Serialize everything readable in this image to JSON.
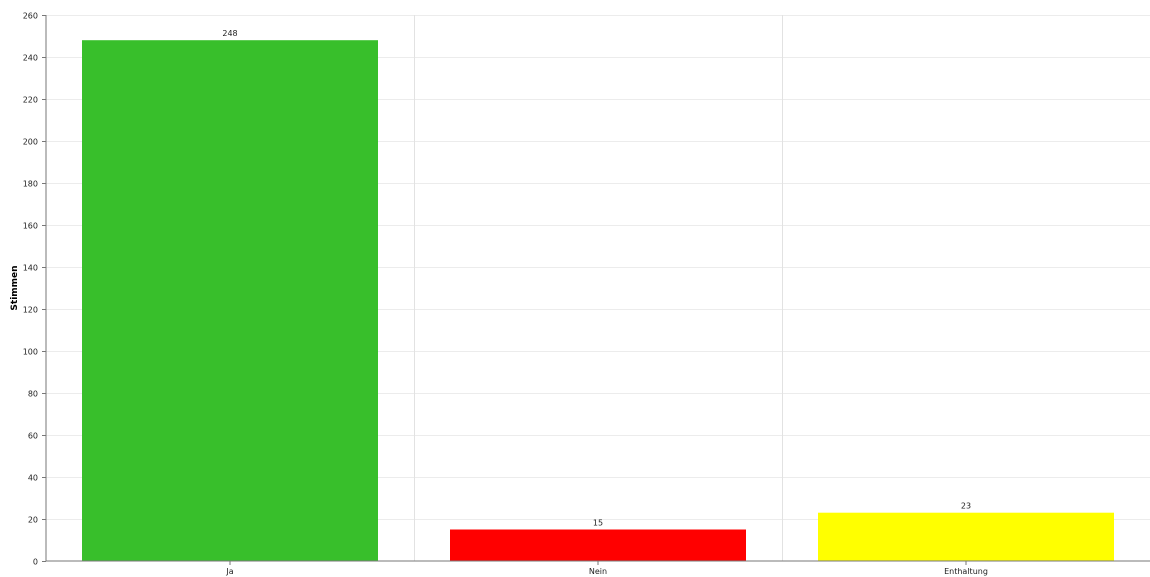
{
  "chart_data": {
    "type": "bar",
    "title": "",
    "xlabel": "",
    "ylabel": "Stimmen",
    "categories": [
      "Ja",
      "Nein",
      "Enthaltung"
    ],
    "values": [
      248,
      15,
      23
    ],
    "data_labels": [
      "248",
      "15",
      "23"
    ],
    "colors": [
      "#38bf2b",
      "#ff0000",
      "#ffff00"
    ],
    "ylim": [
      0,
      260
    ],
    "y_ticks": [
      0,
      20,
      40,
      60,
      80,
      100,
      120,
      140,
      160,
      180,
      200,
      220,
      240,
      260
    ],
    "y_tick_labels": [
      "0",
      "20",
      "40",
      "60",
      "80",
      "100",
      "120",
      "140",
      "160",
      "180",
      "200",
      "220",
      "240",
      "260"
    ],
    "grid": true,
    "legend": "none"
  }
}
